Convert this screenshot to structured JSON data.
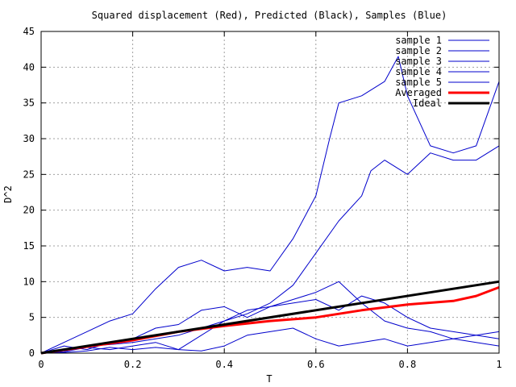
{
  "chart_data": {
    "type": "line",
    "title": "Squared displacement (Red), Predicted (Black), Samples (Blue)",
    "xlabel": "T",
    "ylabel": "D^2",
    "xlim": [
      0,
      1
    ],
    "ylim": [
      0,
      45
    ],
    "xticks": [
      0,
      0.2,
      0.4,
      0.6,
      0.8,
      1
    ],
    "xtick_labels": [
      "0",
      "0.2",
      "0.4",
      "0.6",
      "0.8",
      "1"
    ],
    "yticks": [
      0,
      5,
      10,
      15,
      20,
      25,
      30,
      35,
      40,
      45
    ],
    "ytick_labels": [
      "0",
      "5",
      "10",
      "15",
      "20",
      "25",
      "30",
      "35",
      "40",
      "45"
    ],
    "grid": true,
    "legend_position": "top-right",
    "series": [
      {
        "name": "sample 1",
        "color": "#0000cc",
        "width": 1,
        "x": [
          0,
          0.05,
          0.1,
          0.15,
          0.2,
          0.25,
          0.3,
          0.35,
          0.4,
          0.45,
          0.5,
          0.55,
          0.6,
          0.63,
          0.65,
          0.7,
          0.75,
          0.78,
          0.8,
          0.85,
          0.9,
          0.95,
          1.0
        ],
        "y": [
          0,
          1.5,
          3.0,
          4.5,
          5.5,
          9.0,
          12.0,
          13.0,
          11.5,
          12.0,
          11.5,
          16.0,
          22.0,
          30.0,
          35.0,
          36.0,
          38.0,
          41.5,
          36.0,
          29.0,
          28.0,
          29.0,
          38.0
        ]
      },
      {
        "name": "sample 2",
        "color": "#0000cc",
        "width": 1,
        "x": [
          0,
          0.05,
          0.1,
          0.15,
          0.2,
          0.25,
          0.3,
          0.35,
          0.4,
          0.45,
          0.5,
          0.55,
          0.6,
          0.65,
          0.7,
          0.72,
          0.75,
          0.8,
          0.85,
          0.9,
          0.95,
          1.0
        ],
        "y": [
          0,
          0.5,
          1.0,
          1.2,
          1.5,
          2.0,
          2.5,
          3.5,
          4.5,
          5.5,
          7.0,
          9.5,
          14.0,
          18.5,
          22.0,
          25.5,
          27.0,
          25.0,
          28.0,
          27.0,
          27.0,
          29.0
        ]
      },
      {
        "name": "sample 3",
        "color": "#0000cc",
        "width": 1,
        "x": [
          0,
          0.05,
          0.1,
          0.15,
          0.2,
          0.25,
          0.3,
          0.35,
          0.4,
          0.45,
          0.5,
          0.55,
          0.6,
          0.65,
          0.7,
          0.75,
          0.8,
          0.85,
          0.9,
          0.95,
          1.0
        ],
        "y": [
          0,
          1.0,
          0.5,
          1.5,
          2.0,
          3.5,
          4.0,
          6.0,
          6.5,
          5.0,
          6.5,
          7.5,
          8.5,
          10.0,
          7.0,
          4.5,
          3.5,
          3.0,
          2.0,
          2.5,
          3.0
        ]
      },
      {
        "name": "sample 4",
        "color": "#0000cc",
        "width": 1,
        "x": [
          0,
          0.05,
          0.1,
          0.15,
          0.2,
          0.25,
          0.3,
          0.35,
          0.4,
          0.45,
          0.5,
          0.55,
          0.6,
          0.65,
          0.7,
          0.75,
          0.8,
          0.85,
          0.9,
          0.95,
          1.0
        ],
        "y": [
          0,
          0.2,
          0.8,
          0.5,
          1.0,
          1.5,
          0.5,
          2.5,
          4.5,
          6.0,
          6.5,
          7.0,
          7.5,
          6.0,
          8.0,
          7.0,
          5.0,
          3.5,
          3.0,
          2.5,
          2.0
        ]
      },
      {
        "name": "sample 5",
        "color": "#0000cc",
        "width": 1,
        "x": [
          0,
          0.05,
          0.1,
          0.15,
          0.2,
          0.25,
          0.3,
          0.35,
          0.4,
          0.45,
          0.5,
          0.55,
          0.6,
          0.65,
          0.7,
          0.75,
          0.8,
          0.85,
          0.9,
          0.95,
          1.0
        ],
        "y": [
          0,
          0.1,
          0.3,
          0.8,
          0.5,
          0.8,
          0.5,
          0.3,
          1.0,
          2.5,
          3.0,
          3.5,
          2.0,
          1.0,
          1.5,
          2.0,
          1.0,
          1.5,
          2.0,
          1.5,
          1.0
        ]
      },
      {
        "name": "Averaged",
        "color": "#ff0000",
        "width": 3,
        "x": [
          0,
          0.1,
          0.2,
          0.3,
          0.4,
          0.5,
          0.6,
          0.7,
          0.8,
          0.9,
          0.95,
          1.0
        ],
        "y": [
          0,
          0.9,
          1.8,
          3.0,
          3.8,
          4.5,
          5.0,
          6.0,
          6.8,
          7.3,
          8.0,
          9.2
        ]
      },
      {
        "name": "Ideal",
        "color": "#000000",
        "width": 3,
        "x": [
          0,
          1.0
        ],
        "y": [
          0,
          10.0
        ]
      }
    ]
  }
}
